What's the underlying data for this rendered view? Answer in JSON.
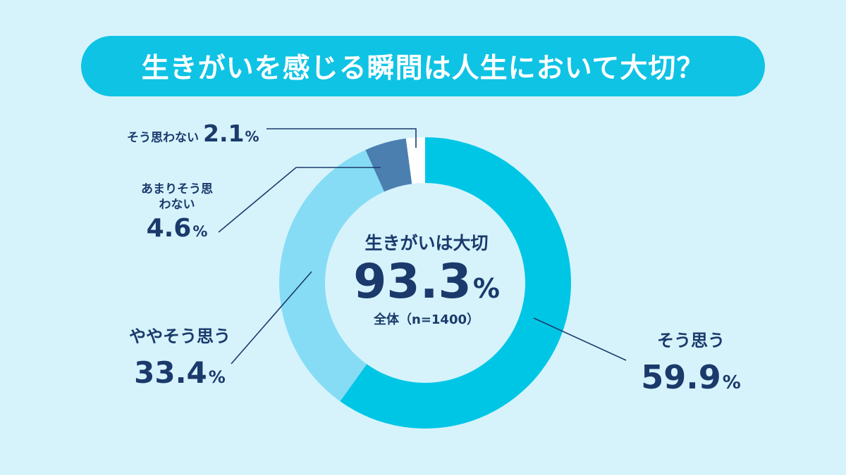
{
  "title": "生きがいを感じる瞬間は人生において大切？",
  "center": {
    "label": "生きがいは大切",
    "value": "93.3",
    "unit": "%",
    "note": "全体（n=1400）"
  },
  "colors": {
    "background": "#d6f3fc",
    "title_bar": "#0fc3e4",
    "text": "#1b3a6b"
  },
  "chart_data": {
    "type": "pie",
    "donut": true,
    "categories": [
      "そう思う",
      "ややそう思う",
      "あまりそう思わない",
      "そう思わない"
    ],
    "values": [
      59.9,
      33.4,
      4.6,
      2.1
    ],
    "value_labels": [
      "59.9",
      "33.4",
      "4.6",
      "2.1"
    ],
    "unit": "%",
    "colors": [
      "#00c6e6",
      "#86dcf5",
      "#4a7fb0",
      "#ffffff"
    ],
    "start": "12 o'clock",
    "direction": "clockwise"
  }
}
